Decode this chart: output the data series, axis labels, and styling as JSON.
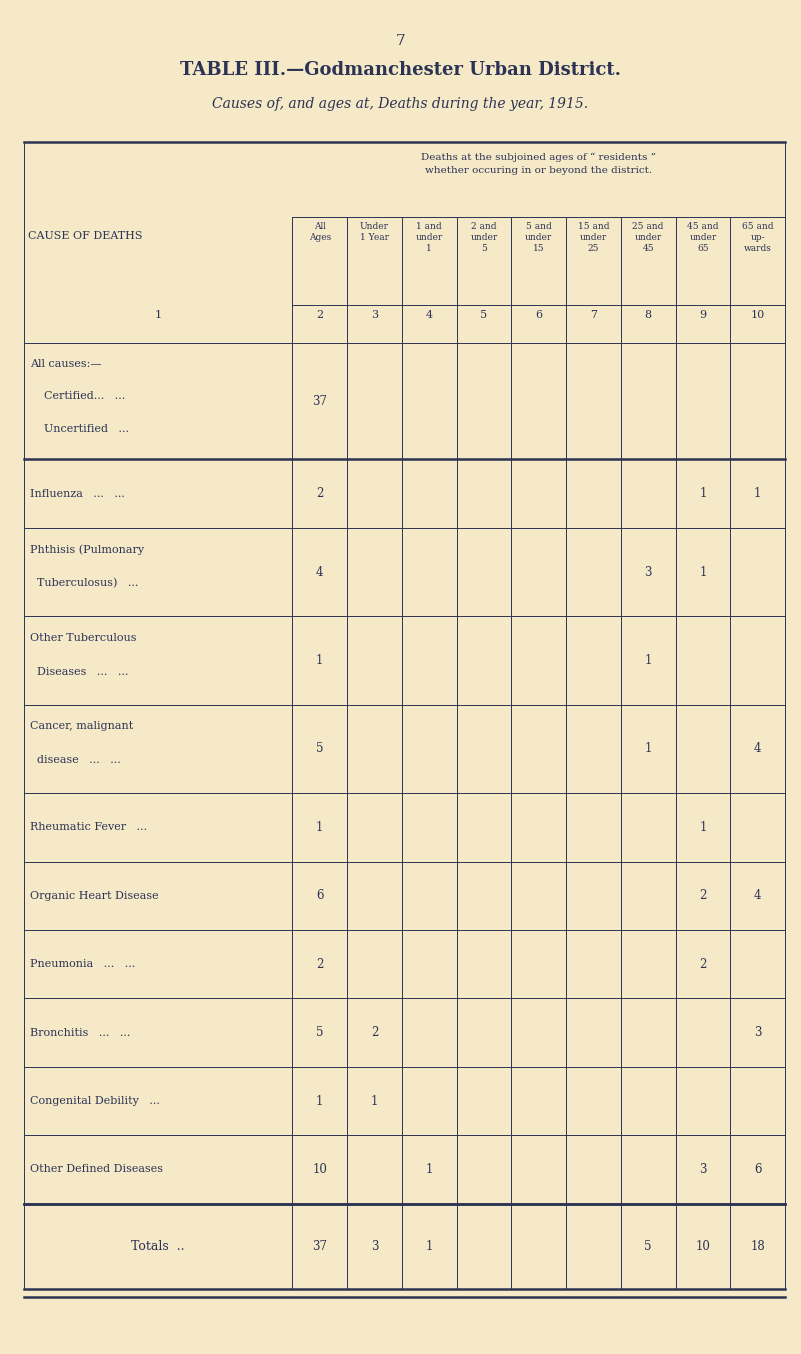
{
  "page_number": "7",
  "title": "TABLE III.—Godmanchester Urban District.",
  "subtitle": "Causes of, and ages at, Deaths during the year, 1915.",
  "subheader": "Deaths at the subjoined ages of “ residents ”\nwhether occuring in or beyond the district.",
  "col_header_label": "CAUSE OF DEATHS",
  "col_numbers": [
    "1",
    "2",
    "3",
    "4",
    "5",
    "6",
    "7",
    "8",
    "9",
    "10"
  ],
  "col_headers_top": [
    "All\nAges",
    "Under\n1 Year",
    "1 and\nunder\n1",
    "2 and\nunder\n5",
    "5 and\nunder\n15",
    "15 and\nunder\n25",
    "25 and\nunder\n45",
    "45 and\nunder\n65",
    "65 and\nup-\nwards"
  ],
  "rows": [
    {
      "cause": [
        "All causes:—",
        "    Certified...   ...",
        "    Uncertified   ..."
      ],
      "values": [
        "37",
        "",
        "",
        "",
        "",
        "",
        "",
        "",
        ""
      ],
      "lines": 3,
      "separator": true
    },
    {
      "cause": [
        "Influenza   ...   ..."
      ],
      "values": [
        "2",
        "",
        "",
        "",
        "",
        "",
        "",
        "1",
        "1"
      ],
      "lines": 1,
      "separator": false
    },
    {
      "cause": [
        "Phthisis (Pulmonary",
        "  Tuberculosus)   ..."
      ],
      "values": [
        "4",
        "",
        "",
        "",
        "",
        "",
        "3",
        "1",
        ""
      ],
      "lines": 2,
      "separator": false
    },
    {
      "cause": [
        "Other Tuberculous",
        "  Diseases   ...   ..."
      ],
      "values": [
        "1",
        "",
        "",
        "",
        "",
        "",
        "1",
        "",
        ""
      ],
      "lines": 2,
      "separator": false
    },
    {
      "cause": [
        "Cancer, malignant",
        "  disease   ...   ..."
      ],
      "values": [
        "5",
        "",
        "",
        "",
        "",
        "",
        "1",
        "",
        "4"
      ],
      "lines": 2,
      "separator": false
    },
    {
      "cause": [
        "Rheumatic Fever   ..."
      ],
      "values": [
        "1",
        "",
        "",
        "",
        "",
        "",
        "",
        "1",
        ""
      ],
      "lines": 1,
      "separator": false
    },
    {
      "cause": [
        "Organic Heart Disease"
      ],
      "values": [
        "6",
        "",
        "",
        "",
        "",
        "",
        "",
        "2",
        "4"
      ],
      "lines": 1,
      "separator": false
    },
    {
      "cause": [
        "Pneumonia   ...   ..."
      ],
      "values": [
        "2",
        "",
        "",
        "",
        "",
        "",
        "",
        "2",
        ""
      ],
      "lines": 1,
      "separator": false
    },
    {
      "cause": [
        "Bronchitis   ...   ..."
      ],
      "values": [
        "5",
        "2",
        "",
        "",
        "",
        "",
        "",
        "",
        "3"
      ],
      "lines": 1,
      "separator": false
    },
    {
      "cause": [
        "Congenital Debility   ..."
      ],
      "values": [
        "1",
        "1",
        "",
        "",
        "",
        "",
        "",
        "",
        ""
      ],
      "lines": 1,
      "separator": false
    },
    {
      "cause": [
        "Other Defined Diseases"
      ],
      "values": [
        "10",
        "",
        "1",
        "",
        "",
        "",
        "",
        "3",
        "6"
      ],
      "lines": 1,
      "separator": true
    }
  ],
  "totals_label": "Totals  ..",
  "totals_values": [
    "37",
    "3",
    "1",
    "",
    "",
    "",
    "5",
    "10",
    "18"
  ],
  "bg_color": "#f5e9c8",
  "text_color": "#2c3354",
  "line_color": "#2c3354",
  "font_size": 9,
  "title_font_size": 13,
  "subtitle_font_size": 10
}
